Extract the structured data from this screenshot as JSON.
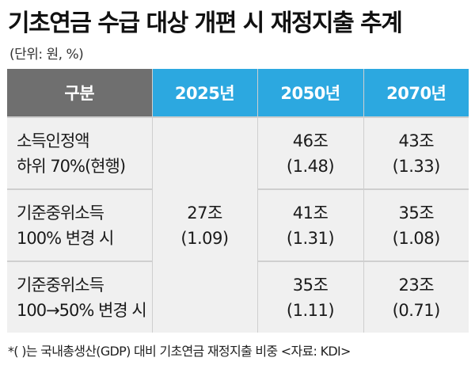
{
  "title": "기초연금 수급 대상 개편 시 재정지출 추계",
  "unit": "(단위: 원, %)",
  "table": {
    "headers": [
      "구분",
      "2025년",
      "2050년",
      "2070년"
    ],
    "rows": [
      {
        "label": [
          "소득인정액",
          "하위 70%(현행)"
        ],
        "y2050": [
          "46조",
          "(1.48)"
        ],
        "y2070": [
          "43조",
          "(1.33)"
        ]
      },
      {
        "label": [
          "기준중위소득",
          "100% 변경 시"
        ],
        "y2050": [
          "41조",
          "(1.31)"
        ],
        "y2070": [
          "35조",
          "(1.08)"
        ]
      },
      {
        "label": [
          "기준중위소득",
          "100→50% 변경 시"
        ],
        "y2050": [
          "35조",
          "(1.11)"
        ],
        "y2070": [
          "23조",
          "(0.71)"
        ]
      }
    ],
    "y2025_merged": [
      "27조",
      "(1.09)"
    ]
  },
  "footnote": "*( )는 국내총생산(GDP) 대비 기초연금 재정지출 비중 <자료: KDI>"
}
